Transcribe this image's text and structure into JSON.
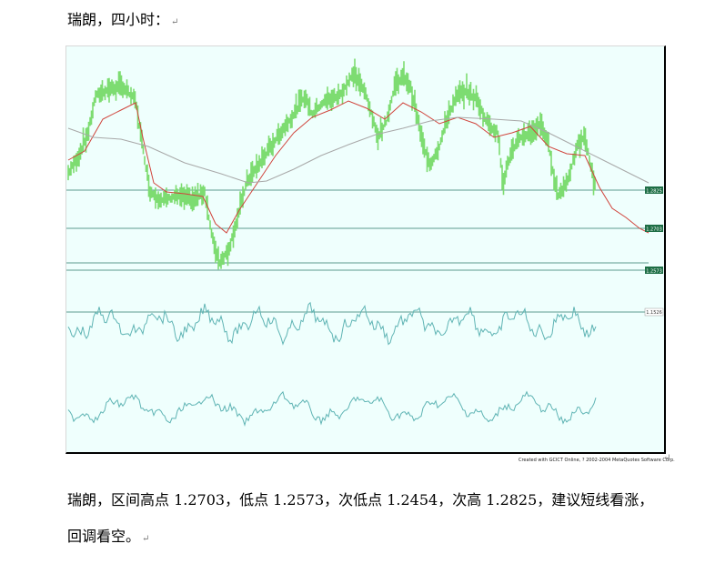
{
  "heading": {
    "text": "瑞朗，四小时：",
    "mark": "↵"
  },
  "chart": {
    "price_labels": [
      "1.2825",
      "1.2703",
      "1.2573"
    ],
    "indicator_label": "1.1526",
    "colors": {
      "background": "#effffd",
      "price": "#7ddc71",
      "ma_fast": "#d0443c",
      "ma_slow": "#a8a8a8",
      "level_line": "#5e9b8e",
      "oscillator": "#5fb4b4",
      "label_box": "#1d6e45"
    },
    "credit": "Created with GCICT Online, ? 2002-2004 MetaQuotes Software Corp.",
    "credit_mark": "↵"
  },
  "body": {
    "line1": "瑞朗，区间高点 1.2703，低点 1.2573，次低点 1.2454，次高 1.2825，建议短线看涨，",
    "line2": "回调看空。",
    "mark": "↵"
  }
}
